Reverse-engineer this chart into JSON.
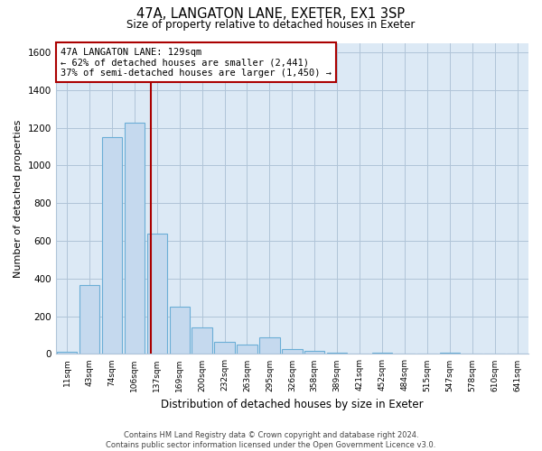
{
  "title": "47A, LANGATON LANE, EXETER, EX1 3SP",
  "subtitle": "Size of property relative to detached houses in Exeter",
  "xlabel": "Distribution of detached houses by size in Exeter",
  "ylabel": "Number of detached properties",
  "bin_labels": [
    "11sqm",
    "43sqm",
    "74sqm",
    "106sqm",
    "137sqm",
    "169sqm",
    "200sqm",
    "232sqm",
    "263sqm",
    "295sqm",
    "326sqm",
    "358sqm",
    "389sqm",
    "421sqm",
    "452sqm",
    "484sqm",
    "515sqm",
    "547sqm",
    "578sqm",
    "610sqm",
    "641sqm"
  ],
  "bar_heights": [
    10,
    365,
    1150,
    1225,
    640,
    250,
    140,
    65,
    50,
    90,
    25,
    15,
    5,
    2,
    5,
    0,
    0,
    5,
    0,
    0,
    0
  ],
  "bar_color": "#c5d9ee",
  "bar_edge_color": "#6baed6",
  "vline_color": "#aa0000",
  "annotation_text": "47A LANGATON LANE: 129sqm\n← 62% of detached houses are smaller (2,441)\n37% of semi-detached houses are larger (1,450) →",
  "annotation_box_color": "#ffffff",
  "annotation_box_edge": "#aa0000",
  "ylim": [
    0,
    1650
  ],
  "yticks": [
    0,
    200,
    400,
    600,
    800,
    1000,
    1200,
    1400,
    1600
  ],
  "footer_line1": "Contains HM Land Registry data © Crown copyright and database right 2024.",
  "footer_line2": "Contains public sector information licensed under the Open Government Licence v3.0.",
  "bg_color": "#ffffff",
  "plot_bg_color": "#dce9f5",
  "grid_color": "#b0c4d8"
}
